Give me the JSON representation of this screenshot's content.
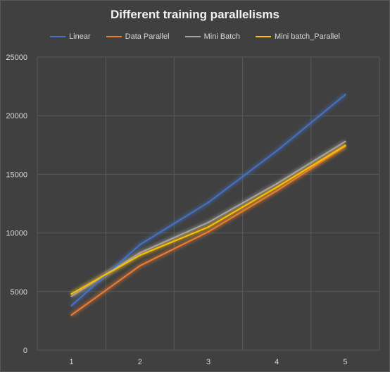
{
  "chart_data": {
    "type": "line",
    "title": "Different training parallelisms",
    "xlabel": "",
    "ylabel": "",
    "categories": [
      "1",
      "2",
      "3",
      "4",
      "5"
    ],
    "ylim": [
      0,
      25000
    ],
    "yticks": [
      "0",
      "5000",
      "10000",
      "15000",
      "20000",
      "25000"
    ],
    "grid": true,
    "legend_position": "top",
    "series": [
      {
        "name": "Linear",
        "color": "#4472c4",
        "values": [
          3800,
          9000,
          12600,
          17000,
          21800
        ]
      },
      {
        "name": "Data Parallel",
        "color": "#ed7d31",
        "values": [
          3000,
          7200,
          10100,
          13600,
          17400
        ]
      },
      {
        "name": "Mini Batch",
        "color": "#a5a5a5",
        "values": [
          4600,
          8300,
          10900,
          14200,
          17800
        ]
      },
      {
        "name": "Mini batch_Parallel",
        "color": "#ffc000",
        "values": [
          4800,
          8100,
          10500,
          13900,
          17450
        ]
      }
    ]
  }
}
